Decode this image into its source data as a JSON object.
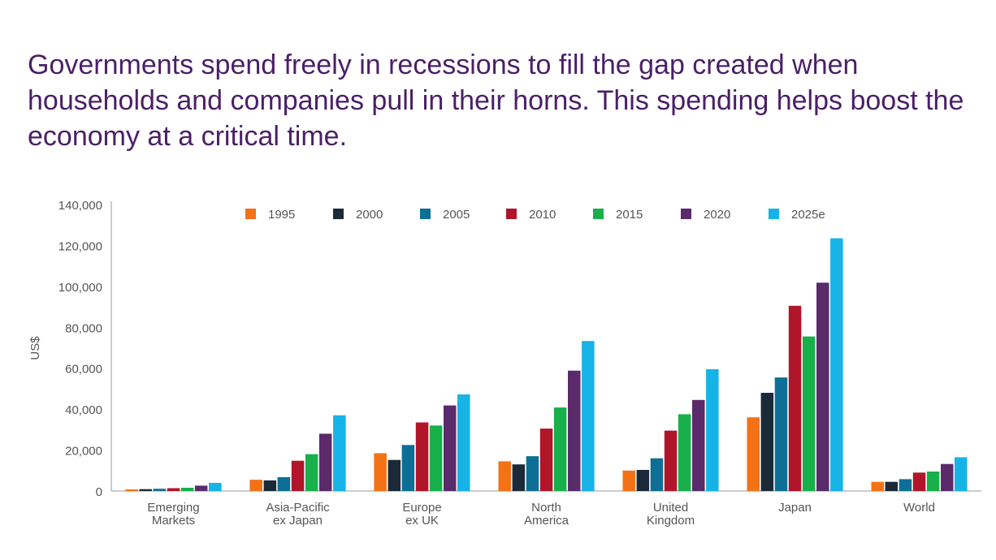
{
  "headline": "Governments spend freely in recessions to fill the gap created when households and companies pull in their horns. This spending helps boost the economy at a critical time.",
  "chart_data": {
    "type": "bar",
    "ylabel": "US$",
    "ylim": [
      0,
      140000
    ],
    "yticks": [
      "0",
      "20,000",
      "40,000",
      "60,000",
      "80,000",
      "100,000",
      "120,000",
      "140,000"
    ],
    "legend_position": "top",
    "categories": [
      [
        "Emerging",
        "Markets"
      ],
      [
        "Asia-Pacific",
        "ex Japan"
      ],
      [
        "Europe",
        "ex UK"
      ],
      [
        "North",
        "America"
      ],
      [
        "United",
        "Kingdom"
      ],
      [
        "Japan"
      ],
      [
        "World"
      ]
    ],
    "series": [
      {
        "name": "1995",
        "color": "#f47216",
        "values": [
          800,
          5500,
          18500,
          14500,
          10000,
          36000,
          4500
        ]
      },
      {
        "name": "2000",
        "color": "#1b2a38",
        "values": [
          900,
          5200,
          15200,
          13000,
          10300,
          48000,
          4500
        ]
      },
      {
        "name": "2005",
        "color": "#0e6f96",
        "values": [
          1100,
          6800,
          22500,
          17000,
          16000,
          55500,
          5800
        ]
      },
      {
        "name": "2010",
        "color": "#b0152a",
        "values": [
          1400,
          14800,
          33500,
          30500,
          29500,
          90500,
          9000
        ]
      },
      {
        "name": "2015",
        "color": "#17b04a",
        "values": [
          1600,
          18000,
          32000,
          40800,
          37500,
          75500,
          9500
        ]
      },
      {
        "name": "2020",
        "color": "#5a2a6b",
        "values": [
          2600,
          28000,
          41800,
          58800,
          44500,
          101800,
          13200
        ]
      },
      {
        "name": "2025e",
        "color": "#16b3e6",
        "values": [
          4000,
          37000,
          47200,
          73300,
          59500,
          123500,
          16500
        ]
      }
    ]
  }
}
